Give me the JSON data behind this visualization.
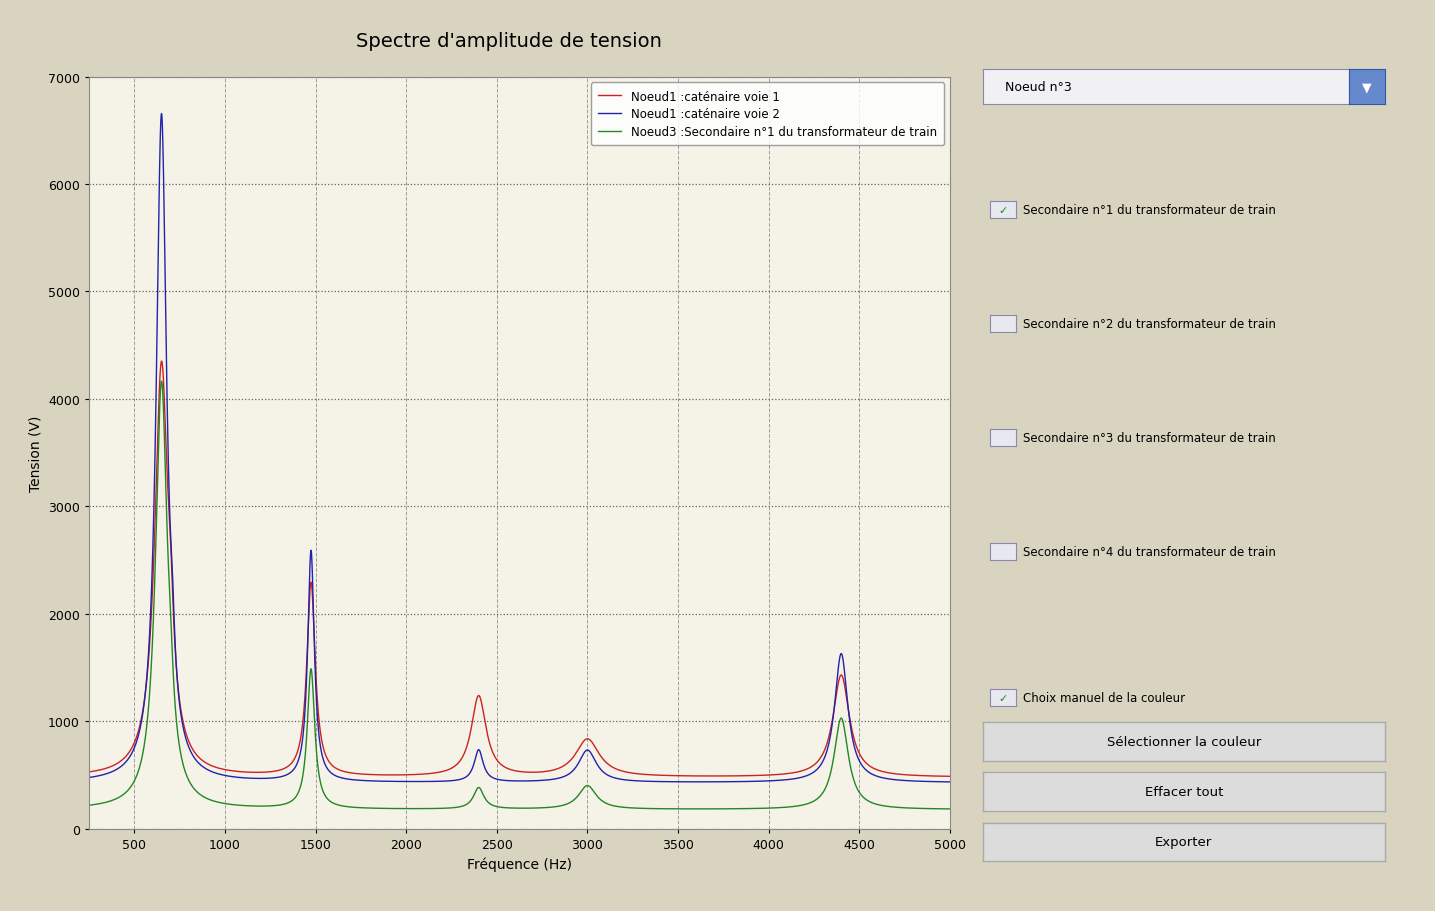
{
  "title": "Spectre d'amplitude de tension",
  "xlabel": "Fréquence (Hz)",
  "ylabel": "Tension (V)",
  "background_color": "#d9d4c0",
  "plot_bg_color": "#f5f2e8",
  "xlim": [
    250,
    5000
  ],
  "ylim": [
    0,
    7000
  ],
  "yticks": [
    0,
    1000,
    2000,
    3000,
    4000,
    5000,
    6000,
    7000
  ],
  "xticks": [
    500,
    1000,
    1500,
    2000,
    2500,
    3000,
    3500,
    4000,
    4500,
    5000
  ],
  "line1_color": "#cc2222",
  "line2_color": "#2222aa",
  "line3_color": "#228822",
  "legend_labels": [
    "Noeud1 :caténaire voie 1",
    "Noeud1 :caténaire voie 2",
    "Noeud3 :Secondaire n°1 du transformateur de train"
  ],
  "checkbox_checked_label": "Secondaire n°1 du transformateur de train",
  "checkbox_unchecked_labels": [
    "Secondaire n°2 du transformateur de train",
    "Secondaire n°3 du transformateur de train",
    "Secondaire n°4 du transformateur de train"
  ],
  "checkbox_couleur_label": "Choix manuel de la couleur",
  "dropdown_label": "Noeud n°3",
  "button_labels": [
    "Sélectionner la couleur",
    "Effacer tout",
    "Exporter"
  ]
}
